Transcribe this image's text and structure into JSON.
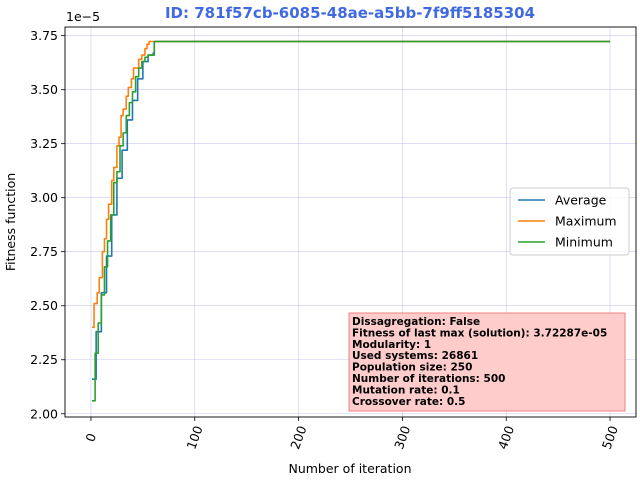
{
  "chart_data": {
    "type": "line",
    "title": "ID: 781f57cb-6085-48ae-a5bb-7f9ff5185304",
    "xlabel": "Number of iteration",
    "ylabel": "Fitness function",
    "y_scale_label": "1e−5",
    "xlim": [
      -25,
      525
    ],
    "ylim": [
      1.985e-05,
      3.79e-05
    ],
    "x_ticks": [
      0,
      100,
      200,
      300,
      400,
      500
    ],
    "y_ticks": [
      2e-05,
      2.25e-05,
      2.5e-05,
      2.75e-05,
      3e-05,
      3.25e-05,
      3.5e-05,
      3.75e-05
    ],
    "y_tick_labels": [
      "2.00",
      "2.25",
      "2.50",
      "2.75",
      "3.00",
      "3.25",
      "3.50",
      "3.75"
    ],
    "grid": true,
    "legend_position": "right",
    "series": [
      {
        "name": "Average",
        "color": "#1f77b4",
        "x": [
          1,
          5,
          10,
          15,
          20,
          25,
          30,
          35,
          40,
          45,
          50,
          55,
          60,
          61,
          500
        ],
        "y": [
          2.16e-05,
          2.38e-05,
          2.56e-05,
          2.73e-05,
          2.92e-05,
          3.09e-05,
          3.22e-05,
          3.36e-05,
          3.45e-05,
          3.55e-05,
          3.63e-05,
          3.66e-05,
          3.67e-05,
          3.72287e-05,
          3.72287e-05
        ]
      },
      {
        "name": "Maximum",
        "color": "#ff7f0e",
        "x": [
          1,
          3,
          6,
          8,
          11,
          13,
          15,
          17,
          20,
          22,
          25,
          27,
          29,
          31,
          34,
          36,
          39,
          41,
          44,
          46,
          49,
          52,
          54,
          56,
          58,
          500
        ],
        "y": [
          2.4e-05,
          2.51e-05,
          2.56e-05,
          2.63e-05,
          2.75e-05,
          2.81e-05,
          2.9e-05,
          2.97e-05,
          3.08e-05,
          3.14e-05,
          3.24e-05,
          3.28e-05,
          3.38e-05,
          3.41e-05,
          3.47e-05,
          3.51e-05,
          3.55e-05,
          3.6e-05,
          3.6e-05,
          3.64e-05,
          3.66e-05,
          3.69e-05,
          3.71e-05,
          3.72287e-05,
          3.72287e-05,
          3.72287e-05
        ]
      },
      {
        "name": "Minimum",
        "color": "#2ca02c",
        "x": [
          1,
          4,
          7,
          10,
          13,
          16,
          19,
          22,
          25,
          28,
          31,
          34,
          37,
          40,
          43,
          46,
          49,
          52,
          55,
          58,
          60,
          61,
          500
        ],
        "y": [
          2.06e-05,
          2.28e-05,
          2.42e-05,
          2.55e-05,
          2.68e-05,
          2.8e-05,
          2.92e-05,
          3.07e-05,
          3.12e-05,
          3.24e-05,
          3.3e-05,
          3.38e-05,
          3.44e-05,
          3.49e-05,
          3.56e-05,
          3.6e-05,
          3.63e-05,
          3.65e-05,
          3.66e-05,
          3.66e-05,
          3.66e-05,
          3.72287e-05,
          3.72287e-05
        ]
      }
    ],
    "info_box": [
      "Dissagregation: False",
      "Fitness of last max (solution): 3.72287e-05",
      "Modularity: 1",
      "Used systems: 26861",
      "Population size: 250",
      "Number of iterations: 500",
      "Mutation rate: 0.1",
      "Crossover rate: 0.5"
    ],
    "info_box_bg": "#ffcccc",
    "info_box_border": "#f08080"
  }
}
